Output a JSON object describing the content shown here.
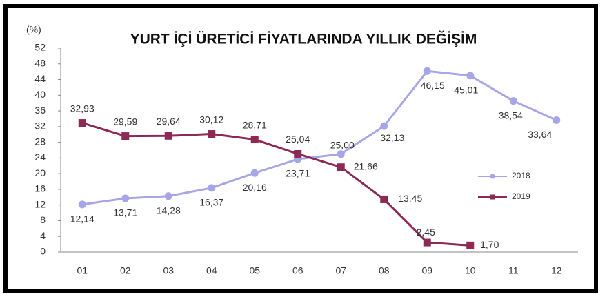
{
  "chart_data": {
    "type": "line",
    "title": "YURT İÇİ ÜRETİCİ FİYATLARINDA YILLIK DEĞİŞİM",
    "y_label": "(%)",
    "categories": [
      "01",
      "02",
      "03",
      "04",
      "05",
      "06",
      "07",
      "08",
      "09",
      "10",
      "11",
      "12"
    ],
    "series": [
      {
        "name": "2018",
        "color": "#a6a6e6",
        "values": [
          12.14,
          13.71,
          14.28,
          16.37,
          20.16,
          23.71,
          25.0,
          32.13,
          46.15,
          45.01,
          38.54,
          33.64
        ],
        "value_labels": [
          "12,14",
          "13,71",
          "14,28",
          "16,37",
          "20,16",
          "23,71",
          "25,00",
          "32,13",
          "46,15",
          "45,01",
          "38,54",
          "33,64"
        ]
      },
      {
        "name": "2019",
        "color": "#8c2a55",
        "values": [
          32.93,
          29.59,
          29.64,
          30.12,
          28.71,
          25.04,
          21.66,
          13.45,
          2.45,
          1.7,
          null,
          null
        ],
        "value_labels": [
          "32,93",
          "29,59",
          "29,64",
          "30,12",
          "28,71",
          "25,04",
          "21,66",
          "13,45",
          "2,45",
          "1,70",
          null,
          null
        ]
      }
    ],
    "ylim": [
      0,
      52
    ],
    "yticks": [
      0,
      4,
      8,
      12,
      16,
      20,
      24,
      28,
      32,
      36,
      40,
      44,
      48,
      52
    ],
    "grid": false,
    "legend": "right"
  }
}
